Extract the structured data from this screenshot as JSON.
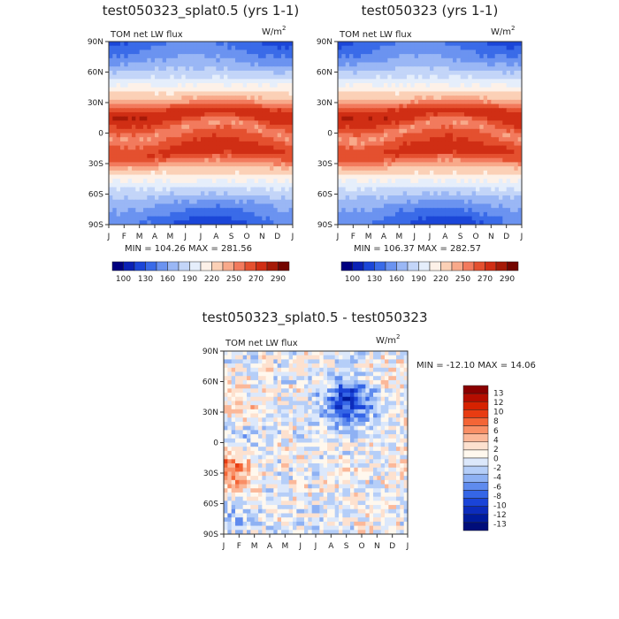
{
  "chart_data": [
    {
      "type": "heatmap",
      "id": "left",
      "title": "test050323_splat0.5 (yrs 1-1)",
      "variable": "TOM net LW flux",
      "units": "W/m",
      "units_exp": "2",
      "x_ticks": [
        "J",
        "F",
        "M",
        "A",
        "M",
        "J",
        "J",
        "A",
        "S",
        "O",
        "N",
        "D",
        "J"
      ],
      "y_ticks": [
        "90N",
        "60N",
        "30N",
        "0",
        "30S",
        "60S",
        "90S"
      ],
      "stats": "MIN = 104.26 MAX = 281.56",
      "min": 104.26,
      "max": 281.56,
      "colorbar": [
        "100",
        "130",
        "160",
        "190",
        "220",
        "250",
        "270",
        "290"
      ],
      "colorbar_colors": [
        "#00007f",
        "#0a21b5",
        "#1b46d8",
        "#3a6be8",
        "#6b93f0",
        "#9ab7f5",
        "#c3d5f8",
        "#e5eefb",
        "#fdf1e8",
        "#fbd0b6",
        "#f8a98a",
        "#f27a5d",
        "#e4502f",
        "#d02e14",
        "#a61a08",
        "#740500"
      ]
    },
    {
      "type": "heatmap",
      "id": "right",
      "title": "test050323 (yrs 1-1)",
      "variable": "TOM net LW flux",
      "units": "W/m",
      "units_exp": "2",
      "x_ticks": [
        "J",
        "F",
        "M",
        "A",
        "M",
        "J",
        "J",
        "A",
        "S",
        "O",
        "N",
        "D",
        "J"
      ],
      "y_ticks": [
        "90N",
        "60N",
        "30N",
        "0",
        "30S",
        "60S",
        "90S"
      ],
      "stats": "MIN = 106.37 MAX = 282.57",
      "min": 106.37,
      "max": 282.57,
      "colorbar": [
        "100",
        "130",
        "160",
        "190",
        "220",
        "250",
        "270",
        "290"
      ],
      "colorbar_colors": [
        "#00007f",
        "#0a21b5",
        "#1b46d8",
        "#3a6be8",
        "#6b93f0",
        "#9ab7f5",
        "#c3d5f8",
        "#e5eefb",
        "#fdf1e8",
        "#fbd0b6",
        "#f8a98a",
        "#f27a5d",
        "#e4502f",
        "#d02e14",
        "#a61a08",
        "#740500"
      ]
    },
    {
      "type": "heatmap",
      "id": "diff",
      "title": "test050323_splat0.5 - test050323",
      "variable": "TOM net LW flux",
      "units": "W/m",
      "units_exp": "2",
      "x_ticks": [
        "J",
        "F",
        "M",
        "A",
        "M",
        "J",
        "J",
        "A",
        "S",
        "O",
        "N",
        "D",
        "J"
      ],
      "y_ticks": [
        "90N",
        "60N",
        "30N",
        "0",
        "30S",
        "60S",
        "90S"
      ],
      "stats": "MIN = -12.10 MAX =  14.06",
      "min": -12.1,
      "max": 14.06,
      "colorbar": [
        "13",
        "12",
        "10",
        "8",
        "6",
        "4",
        "2",
        "0",
        "-2",
        "-4",
        "-6",
        "-8",
        "-10",
        "-12",
        "-13"
      ],
      "colorbar_colors": [
        "#8a0000",
        "#b50d00",
        "#d62200",
        "#e83c12",
        "#f46536",
        "#f98f66",
        "#fbb899",
        "#fde1cf",
        "#fff8ee",
        "#dce8fb",
        "#b5cef8",
        "#8eb1f3",
        "#5f8bee",
        "#3566e6",
        "#1a44d8",
        "#0c2cbc",
        "#001b9c",
        "#000d7a"
      ]
    }
  ]
}
